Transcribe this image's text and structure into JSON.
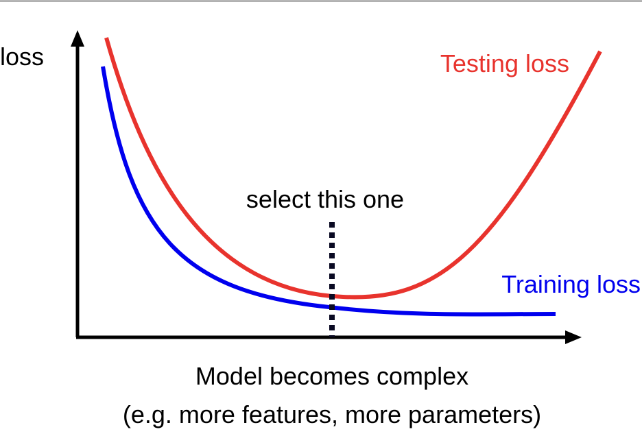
{
  "y_axis_label": "loss",
  "curves": [
    {
      "label": "Testing loss"
    },
    {
      "label": "Training loss"
    }
  ],
  "annotation": "select this one",
  "x_axis_label": {
    "line1": "Model becomes complex",
    "line2": "(e.g. more features, more parameters)"
  }
}
